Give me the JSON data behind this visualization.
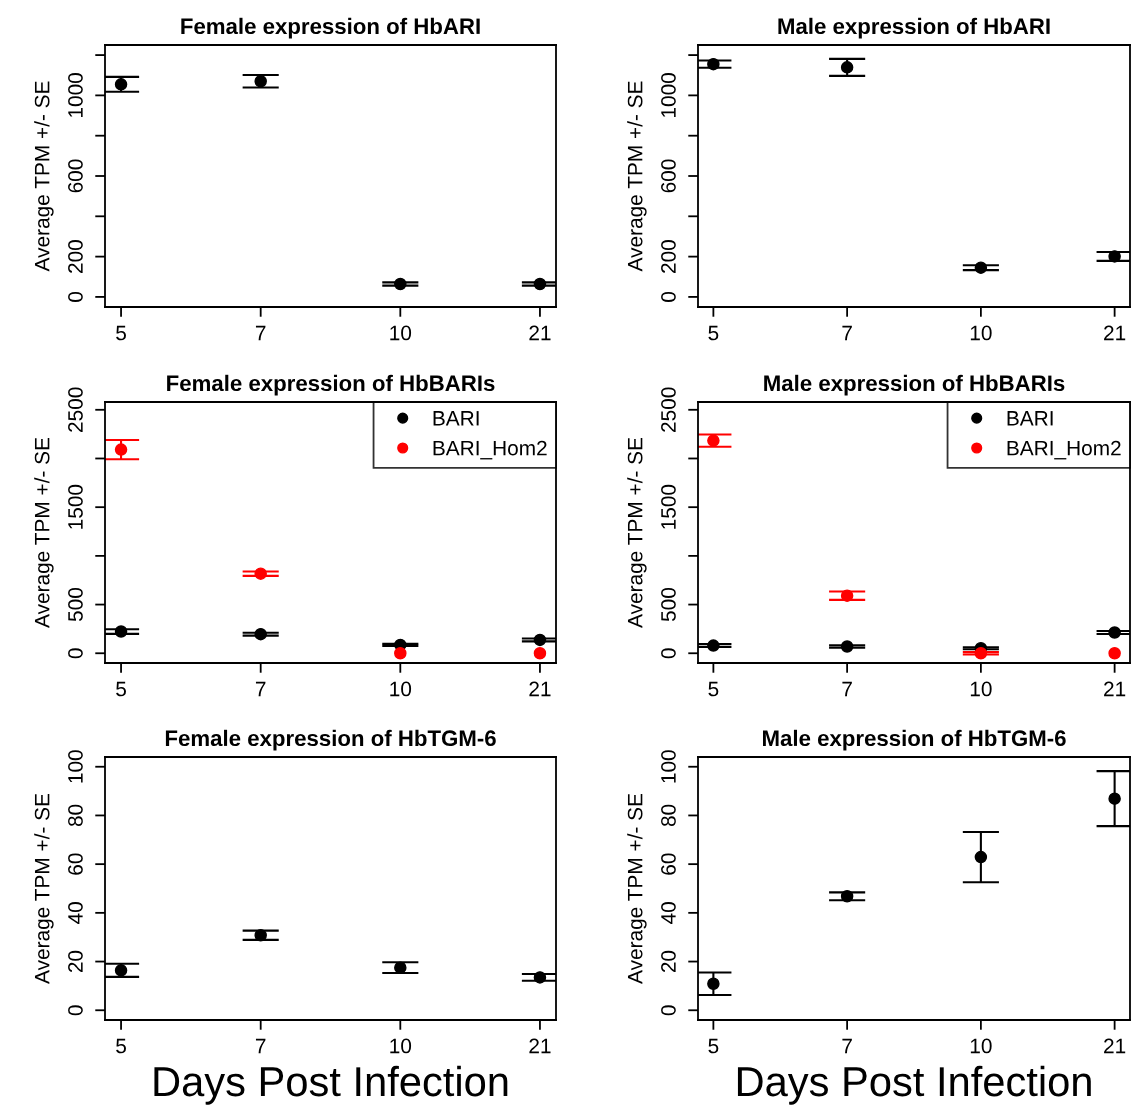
{
  "chart_data": [
    {
      "type": "scatter",
      "title": "Female expression of HbARI",
      "ylabel": "Average TPM +/- SE",
      "categories": [
        "5",
        "7",
        "10",
        "21"
      ],
      "ylim": [
        -50,
        1250
      ],
      "yticks": [
        0,
        200,
        {
          "value": 400,
          "label": null
        },
        600,
        {
          "value": 800,
          "label": null
        },
        1000,
        {
          "value": 1200,
          "label": null
        }
      ],
      "marker": "circle",
      "grid": false,
      "legend": false,
      "series": [
        {
          "color": "#000000",
          "values": [
            1055,
            1070,
            64,
            64
          ],
          "errors": [
            37,
            31,
            8,
            8
          ]
        }
      ]
    },
    {
      "type": "scatter",
      "title": "Male expression of HbARI",
      "ylabel": "Average TPM +/- SE",
      "categories": [
        "5",
        "7",
        "10",
        "21"
      ],
      "ylim": [
        -50,
        1250
      ],
      "yticks": [
        0,
        200,
        {
          "value": 400,
          "label": null
        },
        600,
        {
          "value": 800,
          "label": null
        },
        1000,
        {
          "value": 1200,
          "label": null
        }
      ],
      "marker": "circle",
      "grid": false,
      "legend": false,
      "series": [
        {
          "color": "#000000",
          "values": [
            1155,
            1139,
            145,
            201
          ],
          "errors": [
            18,
            42,
            12,
            22
          ]
        }
      ]
    },
    {
      "type": "scatter",
      "title": "Female expression of HbBARIs",
      "ylabel": "Average TPM +/- SE",
      "categories": [
        "5",
        "7",
        "10",
        "21"
      ],
      "ylim": [
        -100,
        2580
      ],
      "yticks": [
        0,
        500,
        {
          "value": 1000,
          "label": null
        },
        1500,
        {
          "value": 2000,
          "label": null
        },
        2500
      ],
      "marker": "circle",
      "grid": false,
      "legend": "top right",
      "series": [
        {
          "name": "BARI",
          "color": "#000000",
          "values": [
            223,
            196,
            86,
            137
          ],
          "errors": [
            24,
            15,
            10,
            15
          ]
        },
        {
          "name": "BARI_Hom2",
          "color": "#ff0000",
          "values": [
            2091,
            817,
            0,
            0
          ],
          "errors": [
            98,
            22,
            null,
            null
          ]
        }
      ]
    },
    {
      "type": "scatter",
      "title": "Male expression of HbBARIs",
      "ylabel": "Average TPM +/- SE",
      "categories": [
        "5",
        "7",
        "10",
        "21"
      ],
      "ylim": [
        -100,
        2580
      ],
      "yticks": [
        0,
        500,
        {
          "value": 1000,
          "label": null
        },
        1500,
        {
          "value": 2000,
          "label": null
        },
        2500
      ],
      "marker": "circle",
      "grid": false,
      "legend": "top right",
      "series": [
        {
          "name": "BARI",
          "color": "#000000",
          "values": [
            79,
            69,
            52,
            213
          ],
          "errors": [
            15,
            12,
            10,
            15
          ]
        },
        {
          "name": "BARI_Hom2",
          "color": "#ff0000",
          "values": [
            2184,
            591,
            0,
            0
          ],
          "errors": [
            63,
            43,
            12,
            null
          ]
        }
      ]
    },
    {
      "type": "scatter",
      "title": "Female expression of HbTGM-6",
      "ylabel": "Average TPM +/- SE",
      "xlabel": "Days Post Infection",
      "categories": [
        "5",
        "7",
        "10",
        "21"
      ],
      "ylim": [
        -4,
        104
      ],
      "yticks": [
        0,
        20,
        40,
        60,
        80,
        100
      ],
      "marker": "circle",
      "grid": false,
      "legend": false,
      "series": [
        {
          "color": "#000000",
          "values": [
            16.4,
            30.8,
            17.5,
            13.5
          ],
          "errors": [
            2.7,
            1.9,
            2.2,
            1.4
          ]
        }
      ]
    },
    {
      "type": "scatter",
      "title": "Male expression of HbTGM-6",
      "ylabel": "Average TPM +/- SE",
      "xlabel": "Days Post Infection",
      "categories": [
        "5",
        "7",
        "10",
        "21"
      ],
      "ylim": [
        -4,
        104
      ],
      "yticks": [
        0,
        20,
        40,
        60,
        80,
        100
      ],
      "marker": "circle",
      "grid": false,
      "legend": false,
      "series": [
        {
          "color": "#000000",
          "values": [
            10.9,
            46.8,
            62.9,
            86.9
          ],
          "errors": [
            4.6,
            1.6,
            10.3,
            11.3
          ]
        }
      ]
    }
  ]
}
